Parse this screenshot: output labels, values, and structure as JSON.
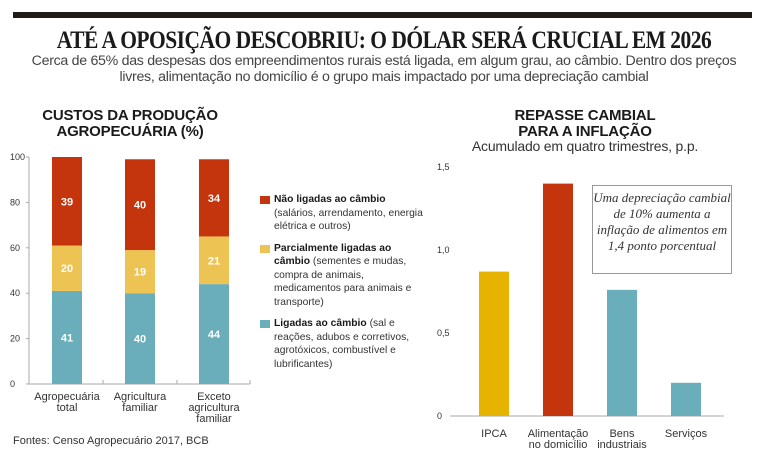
{
  "header": {
    "title": "ATÉ A OPOSIÇÃO DESCOBRIU: O DÓLAR SERÁ CRUCIAL EM 2026",
    "subtitle": "Cerca de 65% das despesas dos empreendimentos rurais está ligada, em algum grau, ao câmbio. Dentro dos preços livres, alimentação no domicílio é o grupo mais impactado por uma depreciação cambial"
  },
  "colors": {
    "red": "#C4350E",
    "yellow_light": "#EDC353",
    "yellow_strong": "#E6B400",
    "teal": "#6AAEBC",
    "axis": "#aaaaaa"
  },
  "chart_data": [
    {
      "type": "bar",
      "stacked": true,
      "title": "CUSTOS DA PRODUÇÃO AGROPECUÁRIA (%)",
      "xlabel": "",
      "ylabel": "",
      "ylim": [
        0,
        100
      ],
      "yticks": [
        0,
        20,
        40,
        60,
        80,
        100
      ],
      "ytick_labels": [
        "0",
        "20",
        "40",
        "60",
        "80",
        "100"
      ],
      "grid": false,
      "categories": [
        [
          "Agropecuária",
          "total"
        ],
        [
          "Agricultura",
          "familiar"
        ],
        [
          "Exceto",
          "agricultura",
          "familiar"
        ]
      ],
      "series": [
        {
          "name": "Ligadas ao câmbio",
          "color_key": "teal",
          "values": [
            41,
            40,
            44
          ]
        },
        {
          "name": "Parcialmente ligadas ao câmbio",
          "color_key": "yellow_light",
          "values": [
            20,
            19,
            21
          ]
        },
        {
          "name": "Não ligadas ao câmbio",
          "color_key": "red",
          "values": [
            39,
            40,
            34
          ]
        }
      ],
      "legend_position": "right",
      "legend": [
        {
          "title": "Não ligadas ao câmbio",
          "desc": "(salários, arrendamento, energia elétrica e outros)",
          "color_key": "red"
        },
        {
          "title": "Parcialmente ligadas ao câmbio",
          "desc": "(sementes e mudas, compra de animais, medicamentos para animais e transporte)",
          "color_key": "yellow_light"
        },
        {
          "title": "Ligadas ao câmbio",
          "desc": "(sal e reações, adubos e corretivos, agrotóxicos, combustível e lubrificantes)",
          "color_key": "teal"
        }
      ]
    },
    {
      "type": "bar",
      "title": "REPASSE CAMBIAL PARA A INFLAÇÃO",
      "subtitle": "Acumulado em quatro trimestres, p.p.",
      "xlabel": "",
      "ylabel": "",
      "ylim": [
        0,
        1.5
      ],
      "yticks": [
        0,
        0.5,
        1.0,
        1.5
      ],
      "ytick_labels": [
        "0",
        "0,5",
        "1,0",
        "1,5"
      ],
      "grid": false,
      "categories": [
        [
          "IPCA"
        ],
        [
          "Alimentação",
          "no domicílio"
        ],
        [
          "Bens",
          "industriais"
        ],
        [
          "Serviços"
        ]
      ],
      "values": [
        0.87,
        1.4,
        0.76,
        0.2
      ],
      "bar_color_keys": [
        "yellow_strong",
        "red",
        "teal",
        "teal"
      ],
      "annotation": "Uma depreciação cambial de 10% aumenta a inflação de alimentos em 1,4 ponto porcentual"
    }
  ],
  "footer": {
    "source": "Fontes: Censo Agropecuário 2017, BCB"
  }
}
